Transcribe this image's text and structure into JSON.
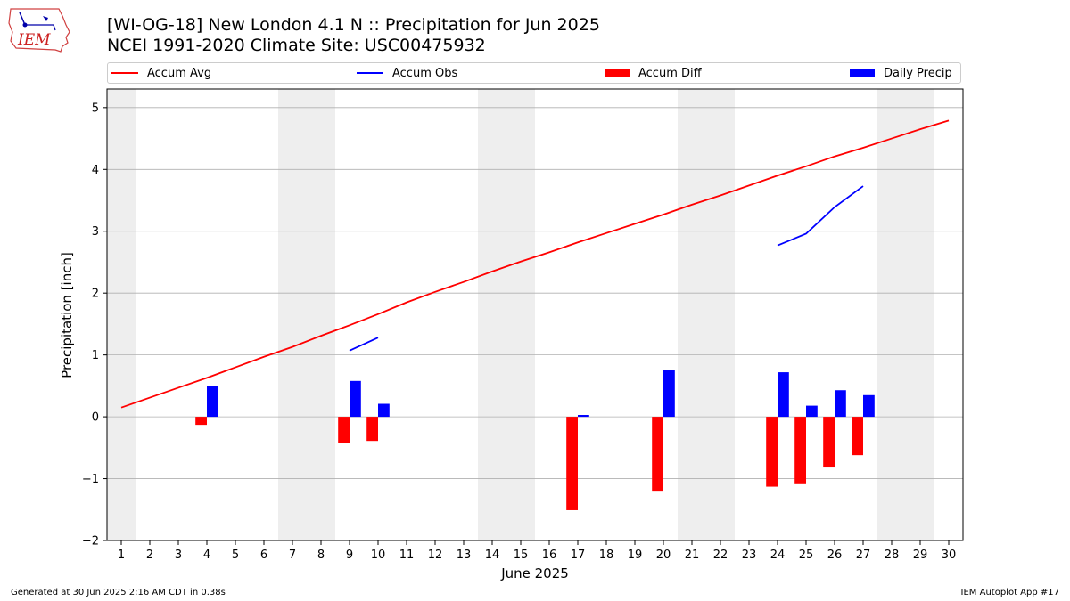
{
  "logo_text": "IEM",
  "title_line1": "[WI-OG-18] New London 4.1 N :: Precipitation for Jun 2025",
  "title_line2": "NCEI 1991-2020 Climate Site: USC00475932",
  "footer_left": "Generated at 30 Jun 2025 2:16 AM CDT in 0.38s",
  "footer_right": "IEM Autoplot App #17",
  "colors": {
    "accum_avg": "#ff0000",
    "accum_obs": "#0000ff",
    "accum_diff": "#ff0000",
    "daily_precip": "#0000ff",
    "weekend_shade": "#eeeeee",
    "grid": "#b0b0b0"
  },
  "chart_data": {
    "type": "bar",
    "xlabel": "June 2025",
    "ylabel": "Precipitation [inch]",
    "xlim": [
      0.5,
      30.5
    ],
    "ylim": [
      -2,
      5.3
    ],
    "x_ticks": [
      1,
      2,
      3,
      4,
      5,
      6,
      7,
      8,
      9,
      10,
      11,
      12,
      13,
      14,
      15,
      16,
      17,
      18,
      19,
      20,
      21,
      22,
      23,
      24,
      25,
      26,
      27,
      28,
      29,
      30
    ],
    "y_ticks": [
      -2,
      -1,
      0,
      1,
      2,
      3,
      4,
      5
    ],
    "y_tick_labels": [
      "−2",
      "−1",
      "0",
      "1",
      "2",
      "3",
      "4",
      "5"
    ],
    "grid": "horizontal",
    "legend_position": "top",
    "shaded_days": [
      [
        0.5,
        1.5
      ],
      [
        6.5,
        8.5
      ],
      [
        13.5,
        15.5
      ],
      [
        20.5,
        22.5
      ],
      [
        27.5,
        29.5
      ]
    ],
    "series": [
      {
        "name": "Accum Avg",
        "kind": "line",
        "x": [
          1,
          2,
          3,
          4,
          5,
          6,
          7,
          8,
          9,
          10,
          11,
          12,
          13,
          14,
          15,
          16,
          17,
          18,
          19,
          20,
          21,
          22,
          23,
          24,
          25,
          26,
          27,
          28,
          29,
          30
        ],
        "values": [
          0.15,
          0.31,
          0.47,
          0.63,
          0.8,
          0.97,
          1.13,
          1.31,
          1.48,
          1.66,
          1.85,
          2.02,
          2.18,
          2.35,
          2.51,
          2.66,
          2.82,
          2.97,
          3.12,
          3.27,
          3.43,
          3.58,
          3.74,
          3.9,
          4.05,
          4.21,
          4.35,
          4.5,
          4.65,
          4.79
        ]
      },
      {
        "name": "Accum Obs",
        "kind": "line",
        "x": [
          9,
          10,
          24,
          25,
          26,
          27
        ],
        "values": [
          1.07,
          1.28,
          2.77,
          2.96,
          3.39,
          3.73
        ],
        "segments": [
          [
            9,
            10
          ],
          [
            24,
            27
          ]
        ]
      },
      {
        "name": "Accum Diff",
        "kind": "bar",
        "x": [
          4,
          9,
          10,
          17,
          20,
          24,
          25,
          26,
          27
        ],
        "values": [
          -0.13,
          -0.42,
          -0.39,
          -1.51,
          -1.21,
          -1.13,
          -1.09,
          -0.82,
          -0.62
        ]
      },
      {
        "name": "Daily Precip",
        "kind": "bar",
        "x": [
          4,
          9,
          10,
          17,
          20,
          24,
          25,
          26,
          27
        ],
        "values": [
          0.5,
          0.58,
          0.21,
          0.03,
          0.75,
          0.72,
          0.18,
          0.43,
          0.35
        ]
      }
    ]
  }
}
